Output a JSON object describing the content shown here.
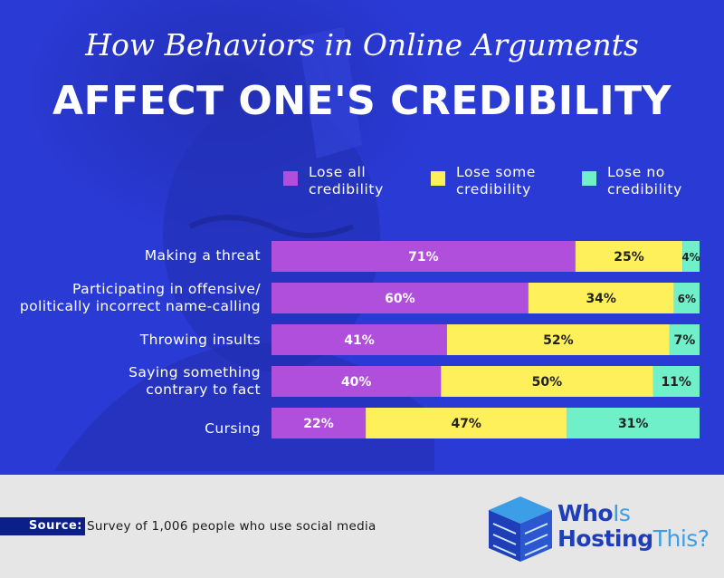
{
  "title_line1": "How Behaviors in Online Arguments",
  "title_line2": "AFFECT ONE'S CREDIBILITY",
  "legend": [
    {
      "line1": "Lose all",
      "line2": "credibility",
      "color": "#b04fdb"
    },
    {
      "line1": "Lose some",
      "line2": "credibility",
      "color": "#fdf05a"
    },
    {
      "line1": "Lose no",
      "line2": "credibility",
      "color": "#6ff0c8"
    }
  ],
  "rows": [
    {
      "line1": "Making a threat",
      "line2": ""
    },
    {
      "line1": "Participating in offensive/",
      "line2": "politically incorrect name-calling"
    },
    {
      "line1": "Throwing insults",
      "line2": ""
    },
    {
      "line1": "Saying something",
      "line2": "contrary to fact"
    },
    {
      "line1": "Cursing",
      "line2": ""
    }
  ],
  "chart_data": {
    "type": "bar",
    "orientation": "horizontal",
    "stacked": true,
    "unit": "%",
    "categories": [
      "Making a threat",
      "Participating in offensive/ politically incorrect name-calling",
      "Throwing insults",
      "Saying something contrary to fact",
      "Cursing"
    ],
    "series": [
      {
        "name": "Lose all credibility",
        "color": "#b04fdb",
        "values": [
          71,
          60,
          41,
          40,
          22
        ],
        "labels": [
          "71%",
          "60%",
          "41%",
          "40%",
          "22%"
        ]
      },
      {
        "name": "Lose some credibility",
        "color": "#fdf05a",
        "values": [
          25,
          34,
          52,
          50,
          47
        ],
        "labels": [
          "25%",
          "34%",
          "52%",
          "50%",
          "47%"
        ]
      },
      {
        "name": "Lose no credibility",
        "color": "#6ff0c8",
        "values": [
          4,
          6,
          7,
          11,
          31
        ],
        "labels": [
          "4%",
          "6%",
          "7%",
          "11%",
          "31%"
        ]
      }
    ],
    "xlim": [
      0,
      100
    ],
    "legend_position": "top",
    "grid": false
  },
  "footer": {
    "source_label": "Source:",
    "source_text": "Survey of 1,006 people who use social media"
  },
  "logo": {
    "line1_a": "Who",
    "line1_b": "Is",
    "line2_a": "Hosting",
    "line2_b": "This?"
  },
  "colors": {
    "background": "#2a3ad4",
    "footer": "#e6e6e6",
    "logo_primary": "#1f3fb8",
    "logo_secondary": "#3c9ee6"
  }
}
